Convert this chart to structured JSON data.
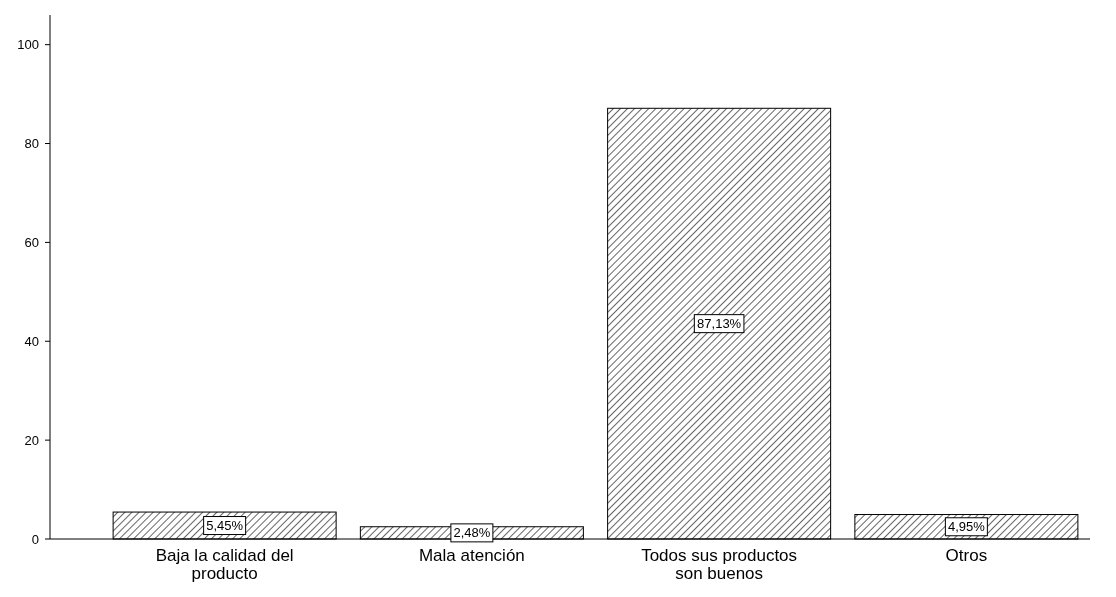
{
  "chart_data": {
    "type": "bar",
    "categories": [
      "Baja la calidad del producto",
      "Mala atención",
      "Todos sus productos son buenos",
      "Otros"
    ],
    "values": [
      5.45,
      2.48,
      87.13,
      4.95
    ],
    "value_labels": [
      "5,45%",
      "2,48%",
      "87,13%",
      "4,95%"
    ],
    "color": "#000000",
    "ylim": [
      0,
      106
    ],
    "yticks": [
      0,
      20,
      40,
      60,
      80,
      100
    ],
    "grid": false
  }
}
